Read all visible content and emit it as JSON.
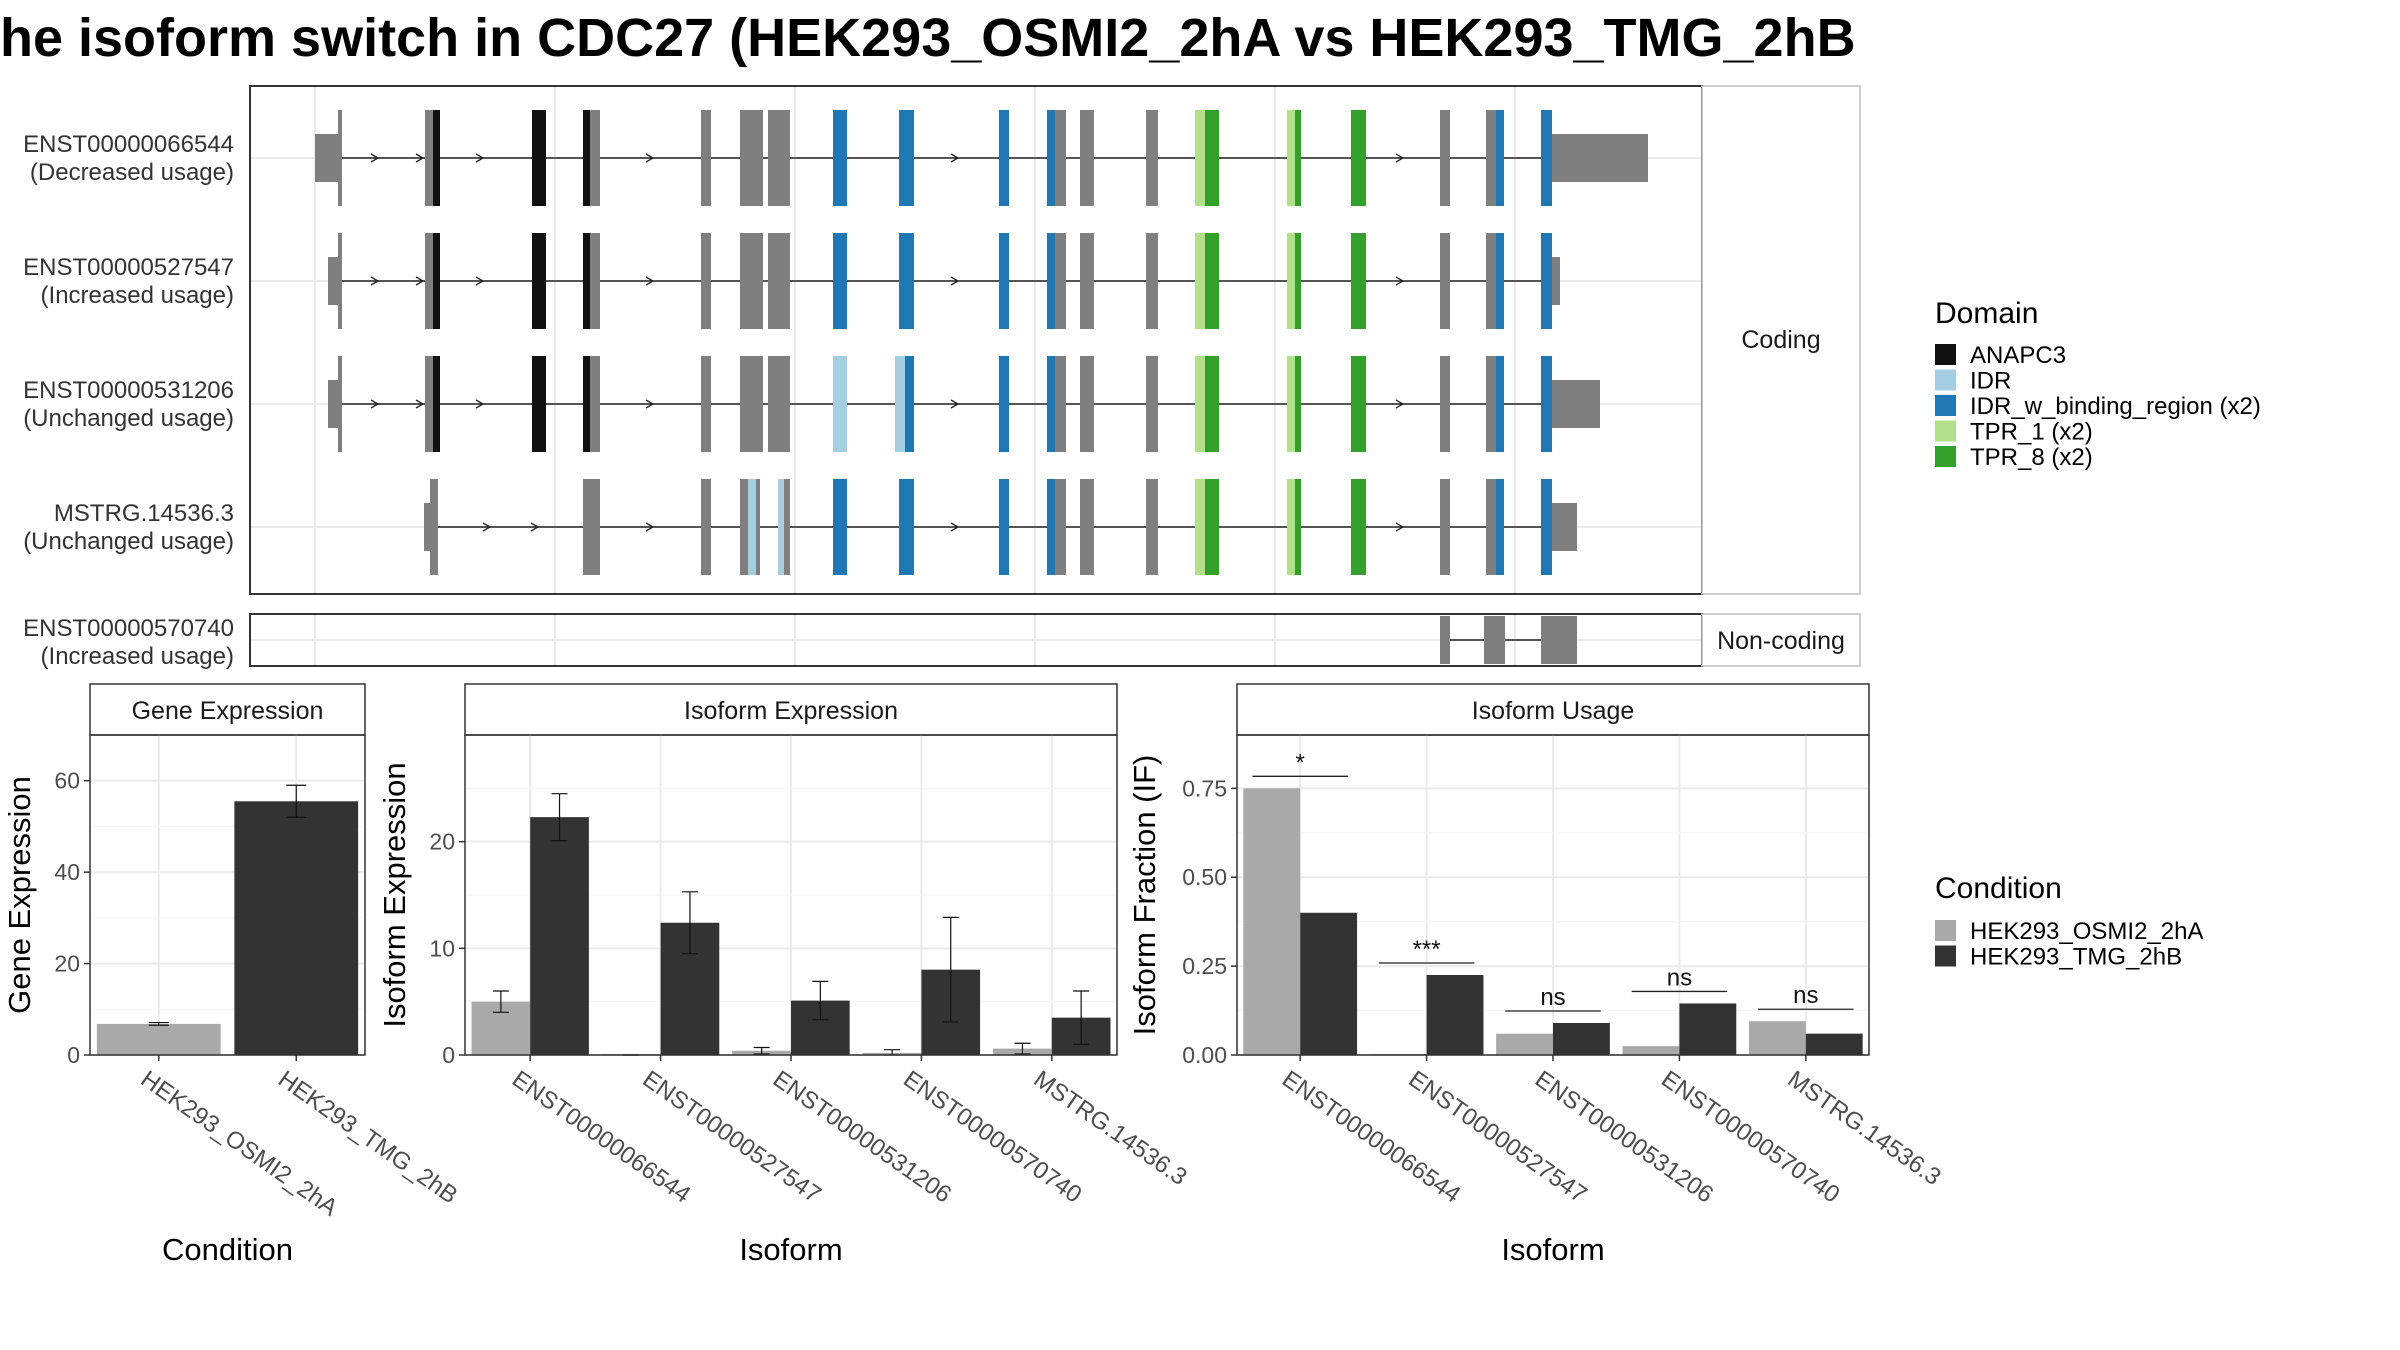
{
  "title": "he isoform switch in CDC27 (HEK293_OSMI2_2hA vs HEK293_TMG_2hB",
  "colors": {
    "ANAPC3": "#111111",
    "IDR": "#a6cee3",
    "IDR_w_binding_region": "#1f78b4",
    "TPR_1": "#b2df8a",
    "TPR_8": "#33a02c",
    "noncoding_exon": "#7f7f7f",
    "cond_A": "#a9a9a9",
    "cond_B": "#333333"
  },
  "structure": {
    "strip_coding": "Coding",
    "strip_noncoding": "Non-coding",
    "transcripts": [
      {
        "id": "ENST00000066544",
        "usage": "(Decreased usage)"
      },
      {
        "id": "ENST00000527547",
        "usage": "(Increased usage)"
      },
      {
        "id": "ENST00000531206",
        "usage": "(Unchanged usage)"
      },
      {
        "id": "MSTRG.14536.3",
        "usage": "(Unchanged usage)"
      }
    ],
    "noncoding_transcript": {
      "id": "ENST00000570740",
      "usage": "(Increased usage)"
    }
  },
  "legend_domain": {
    "title": "Domain",
    "items": [
      {
        "label": "ANAPC3",
        "color": "#111111"
      },
      {
        "label": "IDR",
        "color": "#a6cee3"
      },
      {
        "label": "IDR_w_binding_region (x2)",
        "color": "#1f78b4"
      },
      {
        "label": "TPR_1 (x2)",
        "color": "#b2df8a"
      },
      {
        "label": "TPR_8 (x2)",
        "color": "#33a02c"
      }
    ]
  },
  "legend_condition": {
    "title": "Condition",
    "items": [
      {
        "label": "HEK293_OSMI2_2hA",
        "color": "#a9a9a9"
      },
      {
        "label": "HEK293_TMG_2hB",
        "color": "#333333"
      }
    ]
  },
  "chart_data": [
    {
      "type": "bar",
      "title": "Gene Expression",
      "xlabel": "Condition",
      "ylabel": "Gene Expression",
      "ylim": [
        0,
        70
      ],
      "yticks": [
        "0",
        "20",
        "40",
        "60"
      ],
      "categories": [
        "HEK293_OSMI2_2hA",
        "HEK293_TMG_2hB"
      ],
      "values": [
        6.8,
        55.5
      ],
      "errors": [
        0.3,
        3.5
      ]
    },
    {
      "type": "bar",
      "title": "Isoform Expression",
      "xlabel": "Isoform",
      "ylabel": "Isoform Expression",
      "ylim": [
        0,
        30
      ],
      "yticks": [
        "0",
        "10",
        "20"
      ],
      "categories": [
        "ENST00000066544",
        "ENST00000527547",
        "ENST00000531206",
        "ENST00000570740",
        "MSTRG.14536.3"
      ],
      "series": [
        {
          "name": "HEK293_OSMI2_2hA",
          "values": [
            5.0,
            0.0,
            0.4,
            0.2,
            0.6
          ],
          "errors": [
            1.0,
            0.0,
            0.3,
            0.3,
            0.5
          ]
        },
        {
          "name": "HEK293_TMG_2hB",
          "values": [
            22.3,
            12.4,
            5.1,
            8.0,
            3.5
          ],
          "errors": [
            2.2,
            2.9,
            1.8,
            4.9,
            2.5
          ]
        }
      ]
    },
    {
      "type": "bar",
      "title": "Isoform Usage",
      "xlabel": "Isoform",
      "ylabel": "Isoform Fraction (IF)",
      "ylim": [
        0,
        0.9
      ],
      "yticks": [
        "0.00",
        "0.25",
        "0.50",
        "0.75"
      ],
      "categories": [
        "ENST00000066544",
        "ENST00000527547",
        "ENST00000531206",
        "ENST00000570740",
        "MSTRG.14536.3"
      ],
      "series": [
        {
          "name": "HEK293_OSMI2_2hA",
          "values": [
            0.75,
            0.0,
            0.06,
            0.025,
            0.095
          ]
        },
        {
          "name": "HEK293_TMG_2hB",
          "values": [
            0.4,
            0.225,
            0.09,
            0.145,
            0.06
          ]
        }
      ],
      "significance": [
        "*",
        "***",
        "ns",
        "ns",
        "ns"
      ]
    }
  ]
}
